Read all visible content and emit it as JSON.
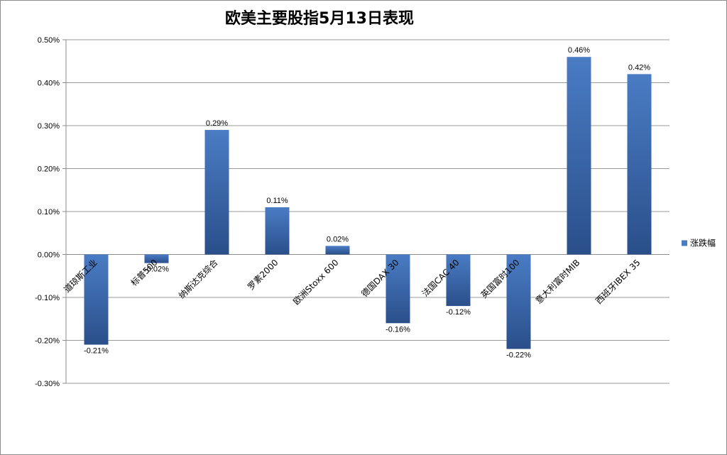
{
  "chart_data": {
    "type": "bar",
    "title": "欧美主要股指5月13日表现",
    "categories": [
      "道琼斯工业",
      "标普500",
      "纳斯达克综合",
      "罗素2000",
      "欧洲Stoxx 600",
      "德国DAX 30",
      "法国CAC 40",
      "英国富时100",
      "意大利富时MIB",
      "西班牙IBEX 35"
    ],
    "series": [
      {
        "name": "涨跌幅",
        "values": [
          -0.21,
          -0.02,
          0.29,
          0.11,
          0.02,
          -0.16,
          -0.12,
          -0.22,
          0.46,
          0.42
        ],
        "labels": [
          "-0.21%",
          "-0.02%",
          "0.29%",
          "0.11%",
          "0.02%",
          "-0.16%",
          "-0.12%",
          "-0.22%",
          "0.46%",
          "0.42%"
        ]
      }
    ],
    "ylim": [
      -0.3,
      0.5
    ],
    "yticks": [
      "0.50%",
      "0.40%",
      "0.30%",
      "0.20%",
      "0.10%",
      "0.00%",
      "-0.10%",
      "-0.20%",
      "-0.30%"
    ],
    "ytick_values": [
      0.5,
      0.4,
      0.3,
      0.2,
      0.1,
      0.0,
      -0.1,
      -0.2,
      -0.3
    ],
    "grid": true,
    "legend": "right",
    "colors": {
      "bar_light": "#4a7cc4",
      "bar_dark": "#2a4f8a",
      "grid": "#9a9a9a"
    }
  }
}
